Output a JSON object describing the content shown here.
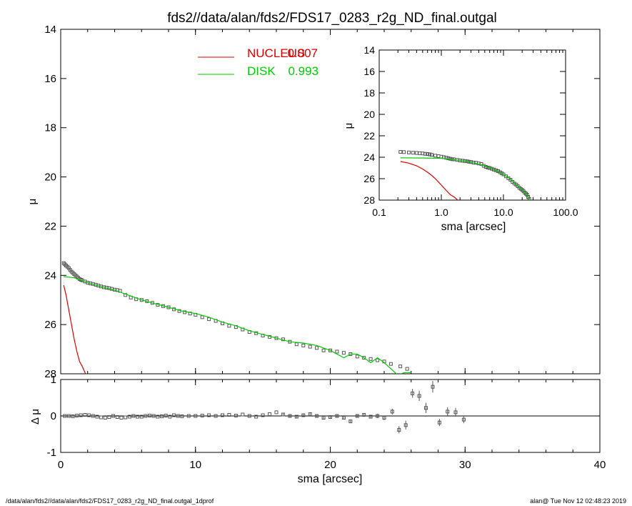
{
  "title": "fds2//data/alan/fds2/FDS17_0283_r2g_ND_final.outgal",
  "footer": {
    "left": "/data/alan/fds2//data/alan/fds2/FDS17_0283_r2g_ND_final.outgal_1dprof",
    "right": "alan@  Tue Nov 12 02:48:23 2019"
  },
  "colors": {
    "nucleus": "#dd0000",
    "disk": "#00cc00",
    "data": "#555555",
    "axis": "#000000"
  },
  "chart_data": [
    {
      "id": "main",
      "type": "scatter",
      "xlabel": "",
      "ylabel": "μ",
      "xlim": [
        0,
        40
      ],
      "ylim": [
        28,
        14
      ],
      "xticks": [
        "0",
        "10",
        "20",
        "30",
        "40"
      ],
      "yticks": [
        "14",
        "16",
        "18",
        "20",
        "22",
        "24",
        "26",
        "28"
      ],
      "legend": {
        "placement": "top-center",
        "entries": [
          {
            "label": "NUCLEUS",
            "value": "0.007",
            "color": "#dd0000"
          },
          {
            "label": "DISK",
            "value": "0.993",
            "color": "#00cc00"
          }
        ]
      },
      "series": [
        {
          "name": "NUCLEUS",
          "style": "line",
          "x": [
            0.22,
            0.4,
            0.6,
            0.8,
            1.0,
            1.2,
            1.4,
            1.6,
            1.8,
            1.9
          ],
          "y": [
            24.4,
            24.8,
            25.4,
            26.0,
            26.6,
            27.1,
            27.5,
            27.7,
            27.95,
            28.1
          ]
        },
        {
          "name": "DISK",
          "style": "line",
          "x": [
            0.22,
            1,
            2,
            3,
            4,
            5,
            6,
            7,
            8,
            9,
            10,
            11,
            12,
            13,
            14,
            15,
            16,
            17,
            18,
            19,
            20,
            21,
            21.5,
            22,
            22.5,
            23,
            23.5,
            24,
            24.5,
            25,
            25.5,
            26
          ],
          "y": [
            24.05,
            24.1,
            24.3,
            24.45,
            24.6,
            24.8,
            25.0,
            25.15,
            25.3,
            25.45,
            25.55,
            25.7,
            25.9,
            26.05,
            26.25,
            26.4,
            26.55,
            26.7,
            26.75,
            26.85,
            27.05,
            27.35,
            27.2,
            27.2,
            27.35,
            27.55,
            27.35,
            27.55,
            27.8,
            28.05,
            27.95,
            27.95
          ]
        },
        {
          "name": "",
          "style": "markers",
          "x": [
            0.22,
            0.3,
            0.4,
            0.5,
            0.6,
            0.7,
            0.8,
            0.9,
            1.0,
            1.1,
            1.2,
            1.3,
            1.4,
            1.5,
            1.6,
            1.8,
            2.0,
            2.2,
            2.4,
            2.6,
            2.8,
            3.0,
            3.2,
            3.4,
            3.6,
            3.8,
            4.0,
            4.2,
            4.4,
            4.8,
            5.2,
            5.6,
            6.0,
            6.4,
            6.8,
            7.2,
            7.6,
            8.0,
            8.4,
            8.8,
            9.2,
            9.6,
            10.0,
            10.5,
            11.0,
            11.5,
            12.0,
            12.5,
            13.0,
            13.5,
            14.0,
            14.5,
            15.0,
            15.5,
            16.0,
            16.5,
            17.0,
            17.5,
            18.0,
            18.5,
            19.0,
            19.5,
            20.0,
            20.5,
            21.0,
            21.5,
            22.0,
            22.5,
            23.0,
            23.5,
            24.0,
            24.5,
            25.2,
            25.7
          ],
          "y": [
            23.5,
            23.55,
            23.6,
            23.65,
            23.7,
            23.78,
            23.85,
            23.9,
            23.95,
            24.0,
            24.05,
            24.1,
            24.15,
            24.18,
            24.2,
            24.25,
            24.3,
            24.33,
            24.35,
            24.38,
            24.42,
            24.45,
            24.48,
            24.5,
            24.52,
            24.55,
            24.58,
            24.6,
            24.63,
            24.8,
            24.9,
            24.97,
            25.0,
            25.05,
            25.12,
            25.2,
            25.25,
            25.3,
            25.38,
            25.45,
            25.5,
            25.55,
            25.6,
            25.7,
            25.78,
            25.85,
            25.95,
            26.05,
            26.1,
            26.2,
            26.3,
            26.35,
            26.45,
            26.5,
            26.55,
            26.6,
            26.7,
            26.8,
            26.85,
            26.9,
            26.95,
            27.05,
            27.05,
            27.1,
            27.15,
            27.2,
            27.3,
            27.35,
            27.4,
            27.45,
            27.5,
            27.6,
            27.7,
            27.8
          ]
        }
      ]
    },
    {
      "id": "residual",
      "type": "scatter",
      "xlabel": "sma [arcsec]",
      "ylabel": "Δ μ",
      "xlim": [
        0,
        40
      ],
      "ylim": [
        -1,
        1
      ],
      "xticks": [
        "0",
        "10",
        "20",
        "30",
        "40"
      ],
      "yticks": [
        "1",
        "0",
        "-1"
      ],
      "series": [
        {
          "name": "",
          "style": "errorbars",
          "x": [
            0.3,
            0.6,
            0.9,
            1.2,
            1.5,
            1.8,
            2.1,
            2.4,
            2.7,
            3.0,
            3.3,
            3.6,
            3.9,
            4.2,
            4.5,
            4.8,
            5.1,
            5.4,
            5.7,
            6.0,
            6.3,
            6.6,
            6.9,
            7.2,
            7.5,
            7.8,
            8.1,
            8.4,
            8.7,
            9.0,
            9.5,
            10.0,
            10.5,
            11.0,
            11.5,
            12.0,
            12.5,
            13.0,
            13.5,
            14.0,
            14.5,
            15.0,
            15.5,
            16.0,
            16.5,
            17.0,
            17.5,
            18.0,
            18.5,
            19.0,
            19.5,
            20.0,
            20.5,
            21.0,
            21.5,
            22.0,
            22.5,
            23.0,
            23.5,
            24.0,
            24.6,
            25.1,
            25.6,
            26.1,
            26.6,
            27.1,
            27.6,
            28.1,
            28.7,
            29.3,
            29.9
          ],
          "y": [
            0.0,
            0.0,
            -0.01,
            0.01,
            0.02,
            0.03,
            0.02,
            0.0,
            -0.02,
            -0.04,
            -0.05,
            -0.03,
            0.0,
            -0.03,
            -0.05,
            -0.04,
            -0.02,
            0.0,
            -0.02,
            -0.02,
            0.0,
            0.01,
            0.0,
            -0.02,
            -0.01,
            0.01,
            -0.02,
            0.02,
            0.0,
            -0.01,
            0.0,
            0.0,
            0.01,
            0.02,
            0.0,
            0.02,
            0.03,
            0.01,
            0.04,
            0.0,
            -0.02,
            0.02,
            0.05,
            0.1,
            0.04,
            0.0,
            -0.02,
            0.02,
            0.05,
            0.0,
            -0.05,
            -0.03,
            0.0,
            -0.05,
            -0.15,
            0.0,
            0.03,
            -0.02,
            0.0,
            -0.05,
            0.12,
            -0.38,
            -0.25,
            0.62,
            0.55,
            0.22,
            0.8,
            -0.18,
            0.12,
            0.1,
            -0.1
          ],
          "err": [
            0.01,
            0.01,
            0.01,
            0.01,
            0.01,
            0.01,
            0.01,
            0.01,
            0.01,
            0.01,
            0.01,
            0.01,
            0.01,
            0.01,
            0.01,
            0.01,
            0.01,
            0.01,
            0.01,
            0.01,
            0.01,
            0.01,
            0.01,
            0.01,
            0.01,
            0.01,
            0.01,
            0.01,
            0.01,
            0.01,
            0.015,
            0.015,
            0.015,
            0.015,
            0.015,
            0.015,
            0.02,
            0.02,
            0.02,
            0.02,
            0.02,
            0.02,
            0.02,
            0.02,
            0.03,
            0.03,
            0.03,
            0.03,
            0.03,
            0.03,
            0.03,
            0.03,
            0.03,
            0.04,
            0.04,
            0.04,
            0.05,
            0.05,
            0.06,
            0.06,
            0.08,
            0.1,
            0.12,
            0.12,
            0.14,
            0.14,
            0.16,
            0.1,
            0.12,
            0.12,
            0.1
          ]
        }
      ]
    },
    {
      "id": "inset",
      "type": "scatter",
      "xscale": "log",
      "xlabel": "sma [arcsec]",
      "ylabel": "μ",
      "xlim": [
        0.1,
        100
      ],
      "ylim": [
        28,
        14
      ],
      "xticks": [
        "0.1",
        "1.0",
        "10.0",
        "100.0"
      ],
      "yticks": [
        "14",
        "16",
        "18",
        "20",
        "22",
        "24",
        "26",
        "28"
      ],
      "series": [
        {
          "name": "NUCLEUS",
          "style": "line",
          "x": [
            0.22,
            0.3,
            0.4,
            0.5,
            0.6,
            0.7,
            0.8,
            1.0,
            1.2,
            1.4,
            1.6,
            1.8,
            1.9
          ],
          "y": [
            24.4,
            24.55,
            24.8,
            25.1,
            25.4,
            25.7,
            26.0,
            26.6,
            27.1,
            27.5,
            27.7,
            27.95,
            28.1
          ]
        },
        {
          "name": "DISK",
          "style": "line",
          "x": [
            0.22,
            0.5,
            1,
            2,
            3,
            5,
            8,
            12,
            16,
            20,
            24,
            26
          ],
          "y": [
            24.05,
            24.07,
            24.1,
            24.3,
            24.45,
            24.8,
            25.3,
            25.9,
            26.55,
            27.05,
            27.55,
            27.95
          ]
        },
        {
          "name": "",
          "style": "markers",
          "x": [
            0.22,
            0.25,
            0.3,
            0.35,
            0.4,
            0.45,
            0.5,
            0.55,
            0.6,
            0.65,
            0.7,
            0.8,
            0.9,
            1.0,
            1.1,
            1.2,
            1.3,
            1.4,
            1.5,
            1.6,
            1.8,
            2.0,
            2.2,
            2.4,
            2.6,
            2.8,
            3.0,
            3.3,
            3.6,
            4.0,
            4.4,
            4.8,
            5.2,
            5.6,
            6.0,
            6.5,
            7.0,
            7.6,
            8.2,
            8.8,
            9.4,
            10.0,
            11.0,
            12.0,
            13.0,
            14.0,
            15.0,
            16.0,
            17.0,
            18.0,
            19.0,
            20.0,
            21.0,
            22.0,
            23.0,
            24.0,
            25.0,
            26.0
          ],
          "y": [
            23.5,
            23.52,
            23.55,
            23.58,
            23.6,
            23.63,
            23.65,
            23.68,
            23.7,
            23.73,
            23.78,
            23.85,
            23.9,
            23.95,
            24.0,
            24.05,
            24.1,
            24.15,
            24.18,
            24.2,
            24.25,
            24.3,
            24.33,
            24.35,
            24.38,
            24.42,
            24.45,
            24.5,
            24.52,
            24.58,
            24.63,
            24.8,
            24.9,
            24.97,
            25.0,
            25.08,
            25.15,
            25.22,
            25.3,
            25.4,
            25.5,
            25.6,
            25.78,
            25.95,
            26.1,
            26.3,
            26.45,
            26.55,
            26.7,
            26.85,
            26.95,
            27.05,
            27.15,
            27.3,
            27.4,
            27.5,
            27.7,
            27.9
          ]
        }
      ]
    }
  ]
}
